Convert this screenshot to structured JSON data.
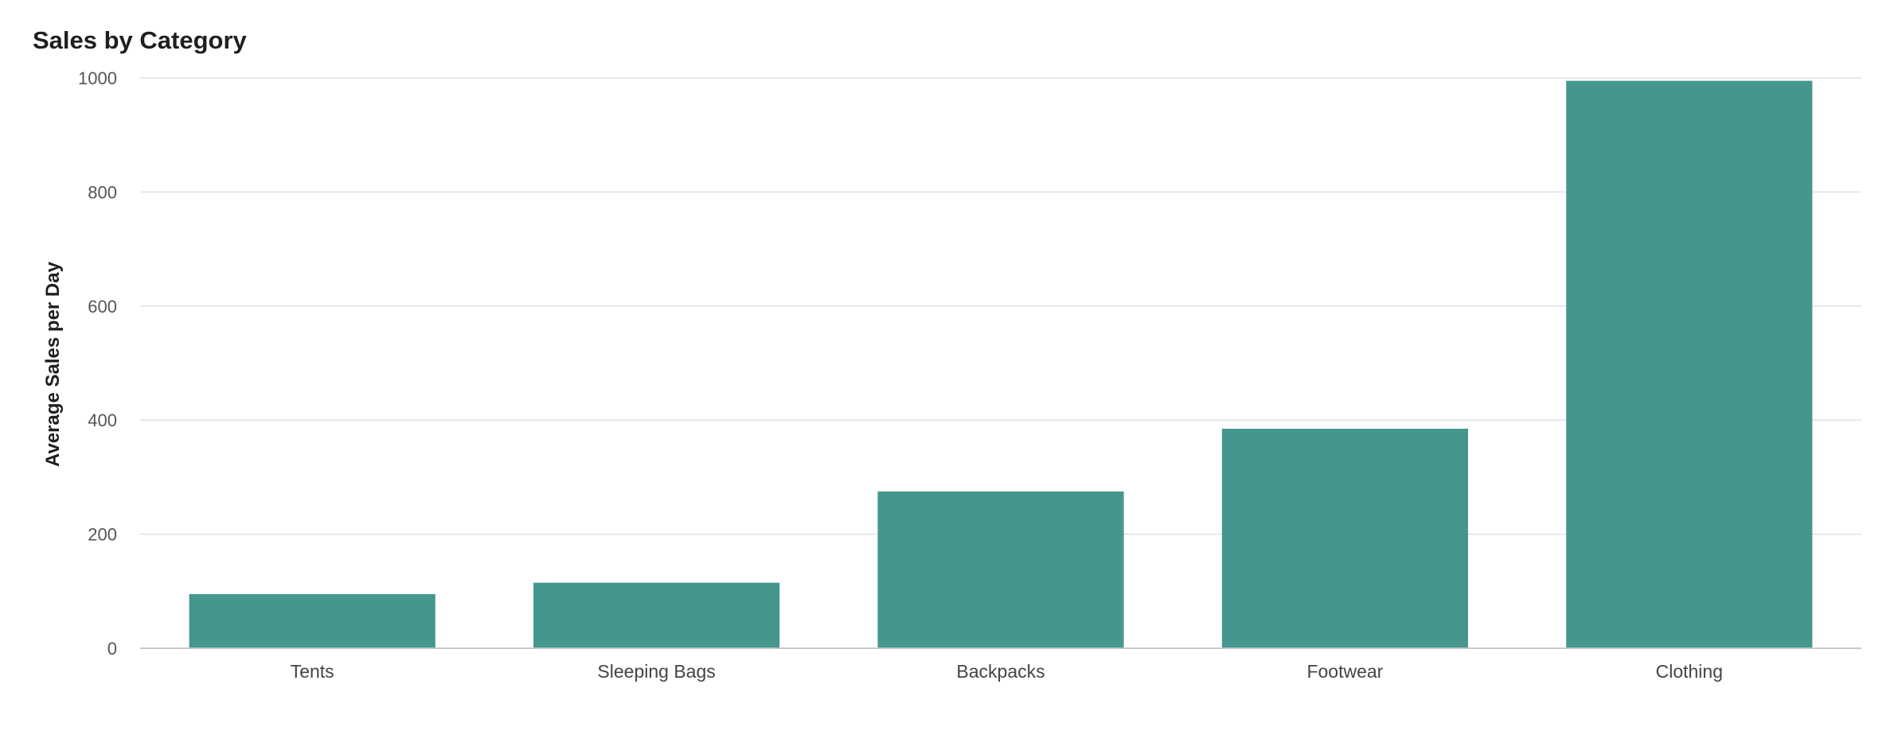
{
  "chart_data": {
    "type": "bar",
    "title": "Sales by Category",
    "xlabel": "",
    "ylabel": "Average Sales per Day",
    "categories": [
      "Tents",
      "Sleeping Bags",
      "Backpacks",
      "Footwear",
      "Clothing"
    ],
    "values": [
      95,
      115,
      275,
      385,
      995
    ],
    "ylim": [
      0,
      1000
    ],
    "yticks": [
      0,
      200,
      400,
      600,
      800,
      1000
    ],
    "grid": true,
    "legend": "none",
    "bar_color": "#45978d"
  }
}
